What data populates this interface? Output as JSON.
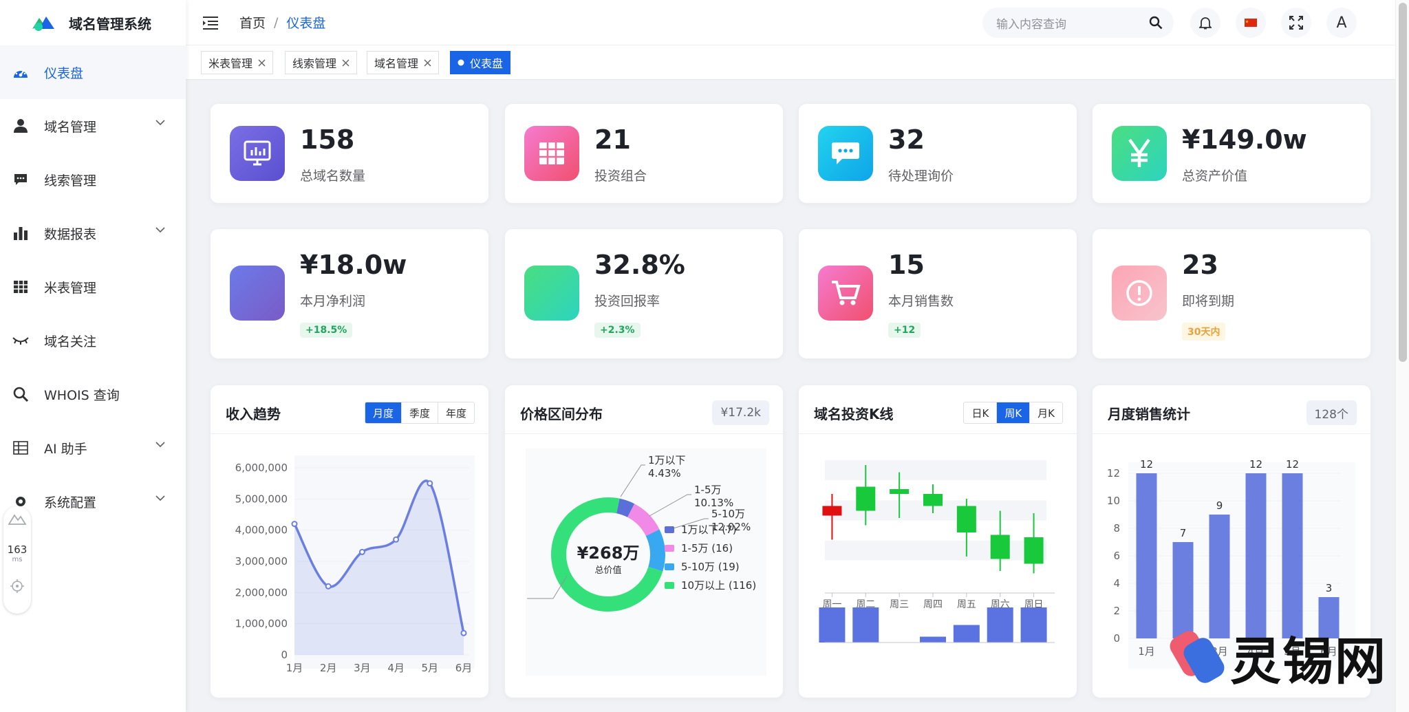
{
  "app": {
    "title": "域名管理系统"
  },
  "sidebar": {
    "items": [
      {
        "label": "仪表盘"
      },
      {
        "label": "域名管理"
      },
      {
        "label": "线索管理"
      },
      {
        "label": "数据报表"
      },
      {
        "label": "米表管理"
      },
      {
        "label": "域名关注"
      },
      {
        "label": "WHOIS 查询"
      },
      {
        "label": "AI 助手"
      },
      {
        "label": "系统配置"
      }
    ]
  },
  "perf": {
    "value": "163",
    "unit": "ms"
  },
  "header": {
    "breadcrumb": [
      "首页",
      "/",
      "仪表盘"
    ],
    "search_placeholder": "输入内容查询",
    "avatar": "A"
  },
  "tags": [
    {
      "label": "米表管理"
    },
    {
      "label": "线索管理"
    },
    {
      "label": "域名管理"
    },
    {
      "label": "仪表盘"
    }
  ],
  "stats_row1": [
    {
      "value": "158",
      "label": "总域名数量"
    },
    {
      "value": "21",
      "label": "投资组合"
    },
    {
      "value": "32",
      "label": "待处理询价"
    },
    {
      "value": "¥149.0w",
      "label": "总资产价值"
    }
  ],
  "stats_row2": [
    {
      "value": "¥18.0w",
      "label": "本月净利润",
      "badge": "+18.5%"
    },
    {
      "value": "32.8%",
      "label": "投资回报率",
      "badge": "+2.3%"
    },
    {
      "value": "15",
      "label": "本月销售数",
      "badge": "+12"
    },
    {
      "value": "23",
      "label": "即将到期",
      "badge": "30天内"
    }
  ],
  "colors": {
    "accent": "#1a64e6",
    "series": "#6b7fe0",
    "green": "#22c55e",
    "red": "#e01010"
  },
  "chart_data": [
    {
      "type": "area",
      "title": "收入趋势",
      "tabs": [
        "月度",
        "季度",
        "年度"
      ],
      "categories": [
        "1月",
        "2月",
        "3月",
        "4月",
        "5月",
        "6月"
      ],
      "values": [
        4200000,
        2200000,
        3300000,
        3700000,
        5500000,
        700000
      ],
      "ylim": [
        0,
        6000000
      ],
      "yticks": [
        "6,000,000",
        "5,000,000",
        "4,000,000",
        "3,000,000",
        "2,000,000",
        "1,000,000",
        "0"
      ]
    },
    {
      "type": "pie",
      "title": "价格区间分布",
      "pill": "¥17.2k",
      "center_value": "¥268万",
      "center_label": "总价值",
      "slices": [
        {
          "name": "1万以下",
          "value": 7,
          "pct": "4.43%"
        },
        {
          "name": "1-5万",
          "value": 16,
          "pct": "10.13%"
        },
        {
          "name": "5-10万",
          "value": 19,
          "pct": "12.02%"
        },
        {
          "name": "10万以上",
          "value": 116,
          "pct": "73.42%"
        }
      ],
      "callouts": [
        {
          "label": "1万以下",
          "pct": "4.43%"
        },
        {
          "label": "1-5万",
          "pct": "10.13%"
        },
        {
          "label": "5-10万",
          "pct": "12.02%"
        }
      ],
      "legend": [
        "1万以下 (7)",
        "1-5万 (16)",
        "5-10万 (19)",
        "10万以上 (116)"
      ]
    },
    {
      "type": "candlestick",
      "title": "域名投资K线",
      "tabs": [
        "日K",
        "周K",
        "月K"
      ],
      "categories": [
        "周一",
        "周二",
        "周三",
        "周四",
        "周五",
        "周六",
        "周日"
      ],
      "candles": [
        {
          "open": 62,
          "close": 66,
          "low": 52,
          "high": 71
        },
        {
          "open": 74,
          "close": 64,
          "low": 58,
          "high": 83
        },
        {
          "open": 73,
          "close": 71,
          "low": 61,
          "high": 80
        },
        {
          "open": 71,
          "close": 66,
          "low": 63,
          "high": 75
        },
        {
          "open": 66,
          "close": 55,
          "low": 45,
          "high": 69
        },
        {
          "open": 54,
          "close": 44,
          "low": 39,
          "high": 64
        },
        {
          "open": 53,
          "close": 42,
          "low": 38,
          "high": 63
        }
      ],
      "volumes": [
        6,
        6,
        0,
        1,
        3,
        6,
        6
      ]
    },
    {
      "type": "bar",
      "title": "月度销售统计",
      "pill": "128个",
      "categories": [
        "1月",
        "2月",
        "3月",
        "4月",
        "5月",
        "6月"
      ],
      "values": [
        12,
        7,
        9,
        12,
        12,
        3
      ],
      "ylim": [
        0,
        12
      ],
      "yticks": [
        "12",
        "10",
        "8",
        "6",
        "4",
        "2",
        "0"
      ]
    }
  ],
  "watermark": {
    "text": "灵锡网"
  }
}
